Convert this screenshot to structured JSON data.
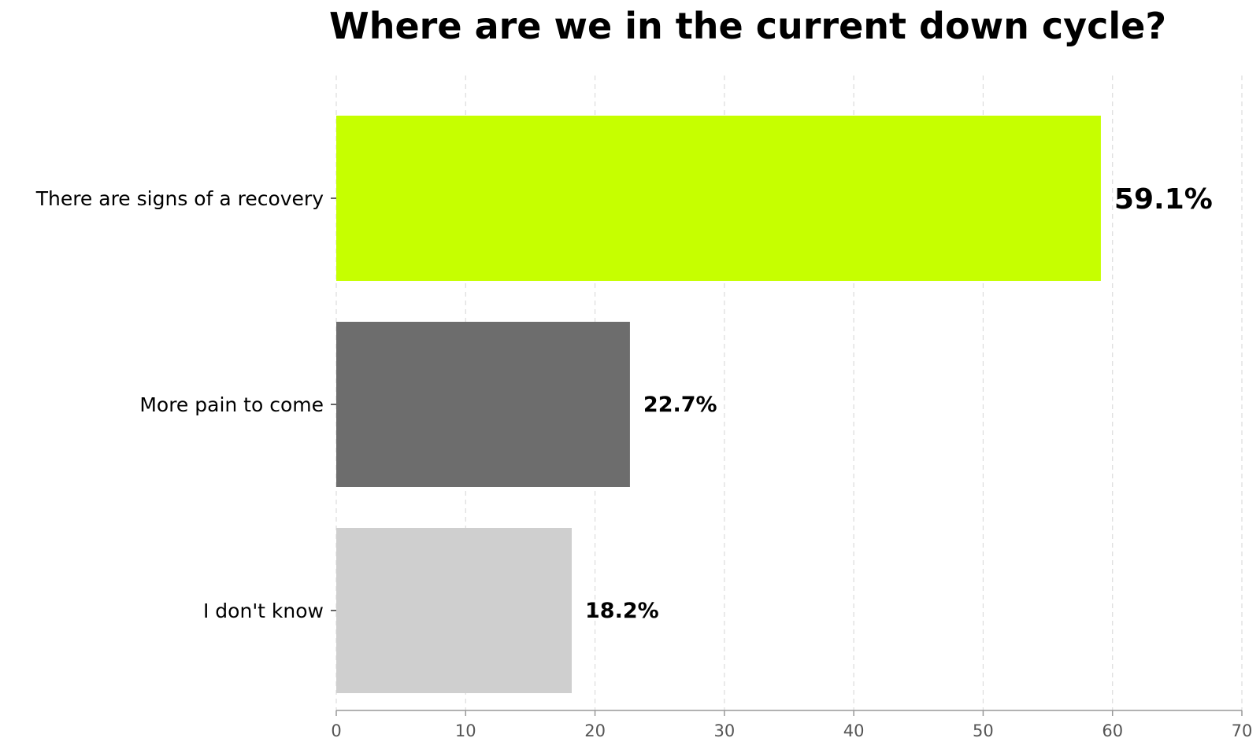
{
  "chart_data": {
    "type": "bar",
    "orientation": "horizontal",
    "title": "Where are we in the current down cycle?",
    "xlabel": "",
    "ylabel": "",
    "xlim": [
      0,
      70
    ],
    "x_ticks": [
      0,
      10,
      20,
      30,
      40,
      50,
      60,
      70
    ],
    "grid": "vertical dashed",
    "categories": [
      "There are signs of a recovery",
      "More pain to come",
      "I don't know"
    ],
    "values": [
      59.1,
      22.7,
      18.2
    ],
    "data_labels": [
      "59.1%",
      "22.7%",
      "18.2%"
    ],
    "colors": [
      "#c6ff00",
      "#6d6d6d",
      "#cfcfcf"
    ]
  }
}
